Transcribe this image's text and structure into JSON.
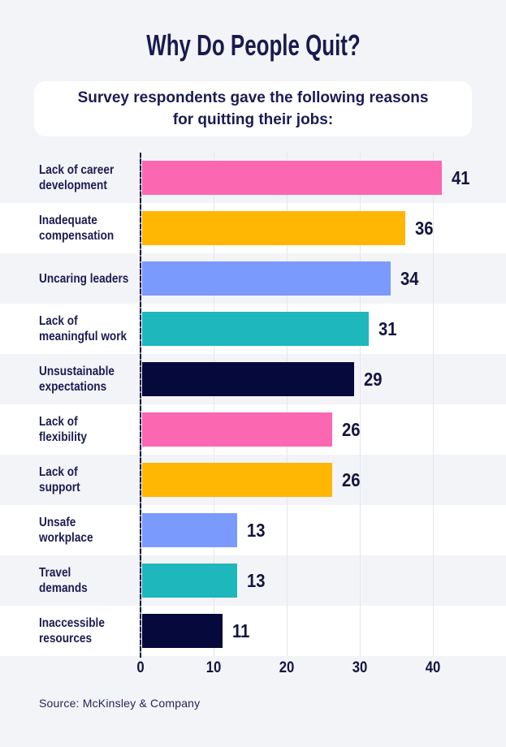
{
  "page": {
    "title": "Why Do People Quit?",
    "subtitle_display": "Survey respondents gave the following reasons\nfor quitting their jobs:",
    "source": "Source: McKinsley & Company"
  },
  "colors": {
    "background": "#F3F4F8",
    "card": "#FFFFFF",
    "text_navy": "#1B1C52",
    "stripe": "#F3F4F8",
    "gridline": "#E5E5EE",
    "axis": "#0A0C3E",
    "pink": "#FC67B2",
    "orange": "#FFB703",
    "periwinkle": "#7A9AFD",
    "teal": "#1EB7BC",
    "navy": "#06093B"
  },
  "chart_data": {
    "type": "bar",
    "orientation": "horizontal",
    "title": "Why Do People Quit?",
    "subtitle": "Survey respondents gave the following reasons for quitting their jobs:",
    "source": "Source: McKinsley & Company",
    "categories": [
      "Lack of career development",
      "Inadequate compensation",
      "Uncaring leaders",
      "Lack of meaningful work",
      "Unsustainable expectations",
      "Lack of flexibility",
      "Lack of support",
      "Unsafe workplace",
      "Travel demands",
      "Inaccessible resources"
    ],
    "display_labels": [
      "Lack of career\ndevelopment",
      "Inadequate\ncompensation",
      "Uncaring leaders",
      "Lack of\nmeaningful work",
      "Unsustainable\nexpectations",
      "Lack of\nflexibility",
      "Lack of\nsupport",
      "Unsafe\nworkplace",
      "Travel\ndemands",
      "Inaccessible\nresources"
    ],
    "values": [
      41,
      36,
      34,
      31,
      29,
      26,
      26,
      13,
      13,
      11
    ],
    "bar_colors": [
      "#FC67B2",
      "#FFB703",
      "#7A9AFD",
      "#1EB7BC",
      "#06093B",
      "#FC67B2",
      "#FFB703",
      "#7A9AFD",
      "#1EB7BC",
      "#06093B"
    ],
    "value_labels_shown": true,
    "xlabel": "",
    "ylabel": "",
    "xlim": [
      0,
      50
    ],
    "xticks": [
      0,
      10,
      20,
      30,
      40
    ],
    "grid": "vertical",
    "legend": "none"
  }
}
